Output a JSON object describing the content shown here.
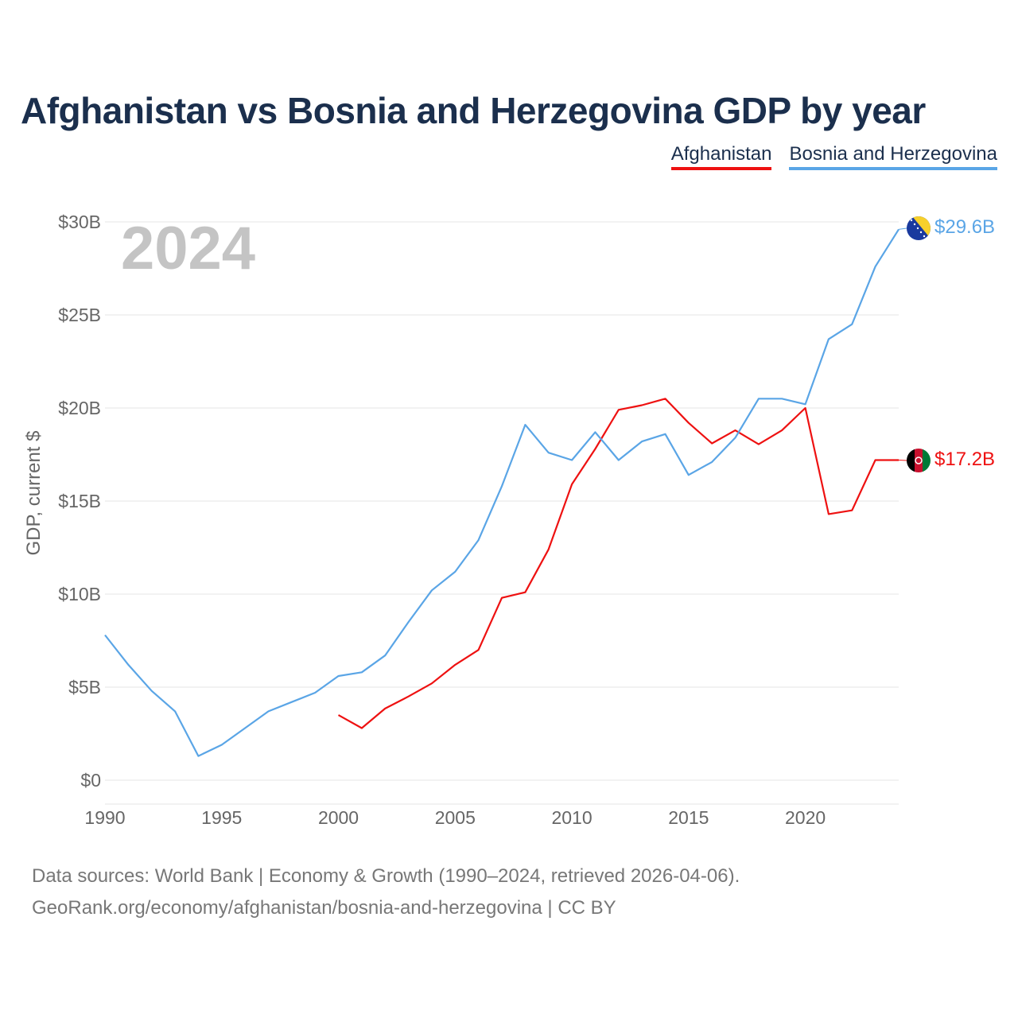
{
  "title": "Afghanistan vs Bosnia and Herzegovina GDP by year",
  "year_label": "2024",
  "footer": {
    "line1": "Data sources: World Bank | Economy & Growth (1990–2024, retrieved 2026-04-06).",
    "line2": "GeoRank.org/economy/afghanistan/bosnia-and-herzegovina | CC BY"
  },
  "chart_data": {
    "type": "line",
    "title": "Afghanistan vs Bosnia and Herzegovina GDP by year",
    "xlabel": "",
    "ylabel": "GDP, current $",
    "xlim": [
      1990,
      2024
    ],
    "ylim": [
      0,
      30
    ],
    "x_ticks": [
      1990,
      1995,
      2000,
      2005,
      2010,
      2015,
      2020
    ],
    "y_ticks": [
      0,
      5,
      10,
      15,
      20,
      25,
      30
    ],
    "y_tick_labels": [
      "$0",
      "$5B",
      "$10B",
      "$15B",
      "$20B",
      "$25B",
      "$30B"
    ],
    "grid": "horizontal",
    "legend_position": "top-right",
    "series": [
      {
        "name": "Afghanistan",
        "color": "#ee1111",
        "end_label": "$17.2B",
        "flag_icon": "afghanistan-flag-icon",
        "x": [
          2000,
          2001,
          2002,
          2003,
          2004,
          2005,
          2006,
          2007,
          2008,
          2009,
          2010,
          2011,
          2012,
          2013,
          2014,
          2015,
          2016,
          2017,
          2018,
          2019,
          2020,
          2021,
          2022,
          2023,
          2024
        ],
        "values": [
          3.5,
          2.8,
          3.85,
          4.5,
          5.2,
          6.2,
          7.0,
          9.8,
          10.1,
          12.4,
          15.9,
          17.8,
          19.9,
          20.15,
          20.5,
          19.2,
          18.1,
          18.8,
          18.05,
          18.8,
          20.0,
          14.3,
          14.5,
          17.2,
          17.2
        ]
      },
      {
        "name": "Bosnia and Herzegovina",
        "color": "#5aa5e6",
        "end_label": "$29.6B",
        "flag_icon": "bosnia-flag-icon",
        "x": [
          1990,
          1991,
          1992,
          1993,
          1994,
          1995,
          1996,
          1997,
          1998,
          1999,
          2000,
          2001,
          2002,
          2003,
          2004,
          2005,
          2006,
          2007,
          2008,
          2009,
          2010,
          2011,
          2012,
          2013,
          2014,
          2015,
          2016,
          2017,
          2018,
          2019,
          2020,
          2021,
          2022,
          2023,
          2024
        ],
        "values": [
          7.8,
          6.2,
          4.8,
          3.7,
          1.3,
          1.9,
          2.8,
          3.7,
          4.2,
          4.7,
          5.6,
          5.8,
          6.7,
          8.5,
          10.2,
          11.2,
          12.9,
          15.8,
          19.1,
          17.6,
          17.2,
          18.7,
          17.2,
          18.2,
          18.6,
          16.4,
          17.1,
          18.4,
          20.5,
          20.5,
          20.2,
          23.7,
          24.5,
          27.6,
          29.6
        ]
      }
    ]
  }
}
